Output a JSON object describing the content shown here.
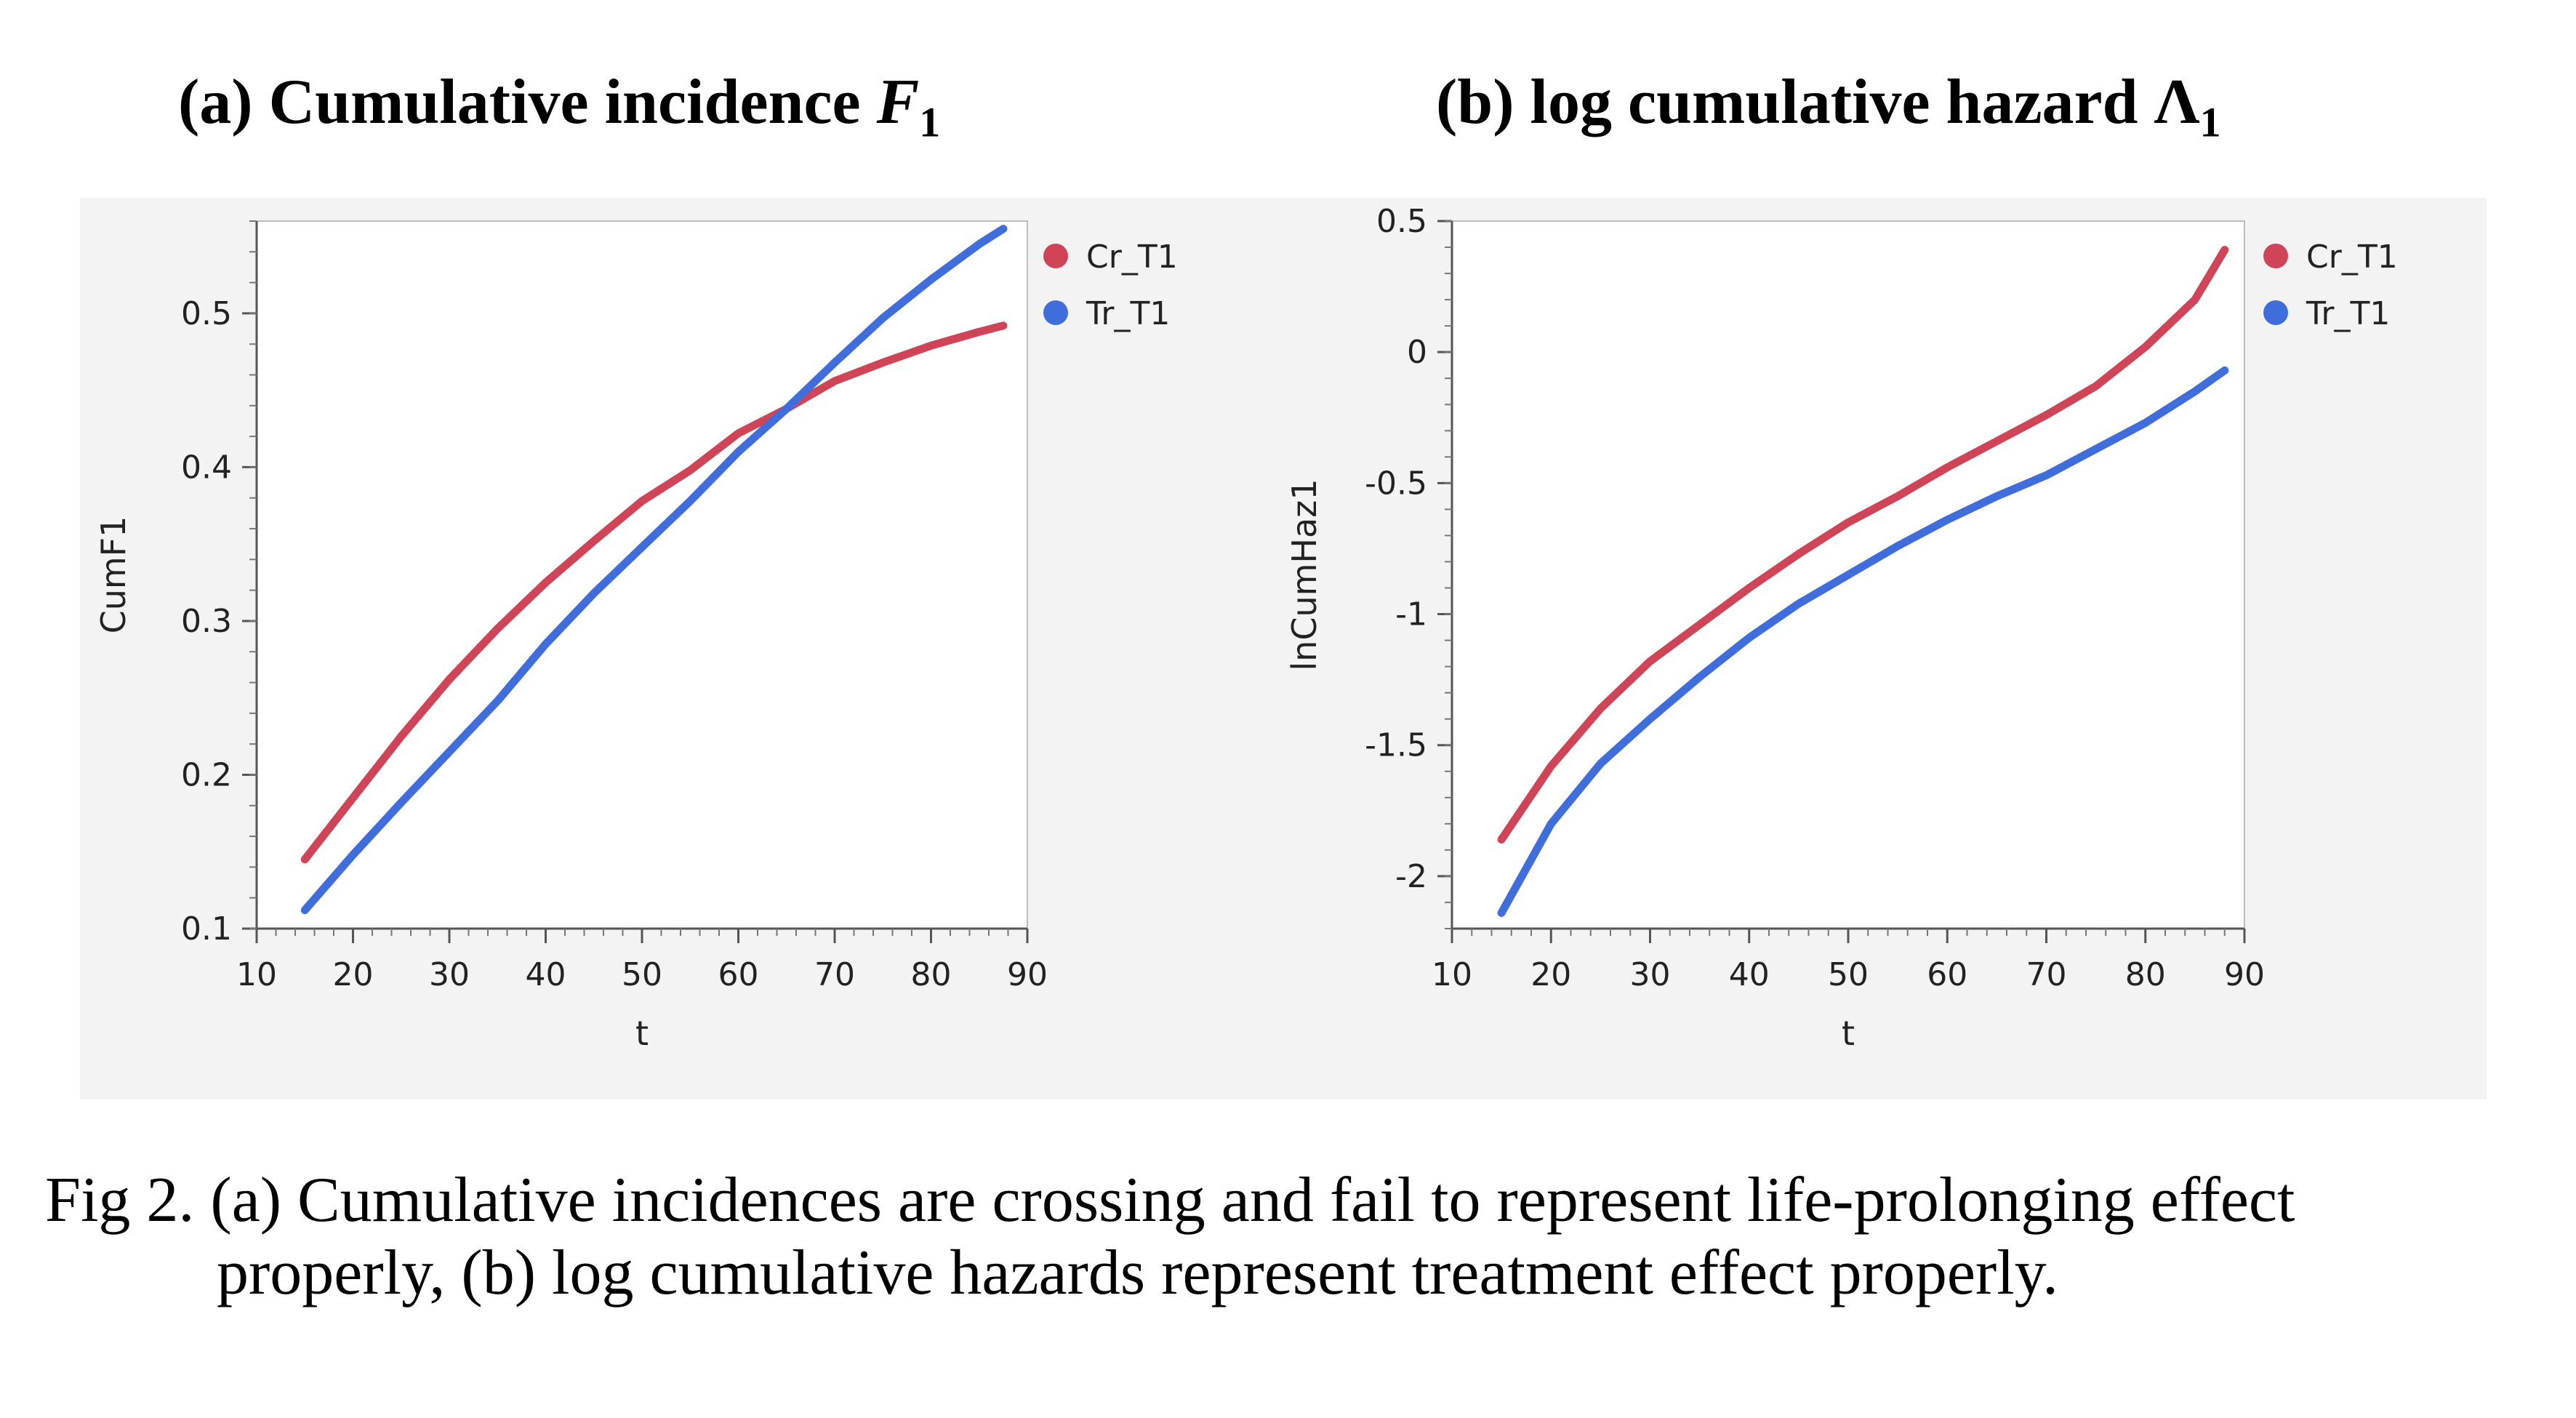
{
  "panels": [
    {
      "label": "(a) Cumulative incidence ",
      "symbol": "F",
      "subscript": "1"
    },
    {
      "label": "(b) log cumulative hazard  ",
      "symbol": "Λ",
      "subscript": "1"
    }
  ],
  "caption": {
    "line1": "Fig 2. (a) Cumulative incidences are crossing and fail to represent life-prolonging effect",
    "line2": "properly, (b) log cumulative hazards represent treatment effect properly."
  },
  "colors": {
    "Cr_T1": "#d04458",
    "Tr_T1": "#3f6ddc"
  },
  "chart_data": [
    {
      "type": "line",
      "title": "",
      "xlabel": "t",
      "ylabel": "CumF1",
      "xlim": [
        10,
        90
      ],
      "ylim": [
        0.1,
        0.56
      ],
      "xticks": [
        10,
        20,
        30,
        40,
        50,
        60,
        70,
        80,
        90
      ],
      "yticks": [
        0.1,
        0.2,
        0.3,
        0.4,
        0.5
      ],
      "ytick_labels": [
        "0.1",
        "0.2",
        "0.3",
        "0.4",
        "0.5"
      ],
      "legend": "right",
      "grid": false,
      "series": [
        {
          "name": "Cr_T1",
          "color": "#d04458",
          "x": [
            15,
            20,
            25,
            30,
            35,
            40,
            45,
            50,
            55,
            60,
            65,
            70,
            75,
            80,
            85,
            87.5
          ],
          "y": [
            0.145,
            0.185,
            0.225,
            0.262,
            0.295,
            0.325,
            0.352,
            0.378,
            0.398,
            0.422,
            0.438,
            0.456,
            0.468,
            0.479,
            0.488,
            0.492
          ]
        },
        {
          "name": "Tr_T1",
          "color": "#3f6ddc",
          "x": [
            15,
            20,
            25,
            30,
            35,
            40,
            45,
            50,
            55,
            60,
            65,
            70,
            75,
            80,
            85,
            87.5
          ],
          "y": [
            0.112,
            0.148,
            0.182,
            0.215,
            0.248,
            0.285,
            0.318,
            0.348,
            0.378,
            0.41,
            0.438,
            0.468,
            0.497,
            0.522,
            0.545,
            0.555
          ]
        }
      ]
    },
    {
      "type": "line",
      "title": "",
      "xlabel": "t",
      "ylabel": "lnCumHaz1",
      "xlim": [
        10,
        90
      ],
      "ylim": [
        -2.2,
        0.5
      ],
      "xticks": [
        10,
        20,
        30,
        40,
        50,
        60,
        70,
        80,
        90
      ],
      "yticks": [
        -2,
        -1.5,
        -1,
        -0.5,
        0,
        0.5
      ],
      "ytick_labels": [
        "-2",
        "-1.5",
        "-1",
        "-0.5",
        "0",
        "0.5"
      ],
      "legend": "right",
      "grid": false,
      "series": [
        {
          "name": "Cr_T1",
          "color": "#d04458",
          "x": [
            15,
            20,
            25,
            30,
            35,
            40,
            45,
            50,
            55,
            60,
            65,
            70,
            75,
            80,
            85,
            88
          ],
          "y": [
            -1.86,
            -1.58,
            -1.36,
            -1.18,
            -1.04,
            -0.9,
            -0.77,
            -0.65,
            -0.55,
            -0.44,
            -0.34,
            -0.24,
            -0.13,
            0.02,
            0.2,
            0.39
          ]
        },
        {
          "name": "Tr_T1",
          "color": "#3f6ddc",
          "x": [
            15,
            20,
            25,
            30,
            35,
            40,
            45,
            50,
            55,
            60,
            65,
            70,
            75,
            80,
            85,
            88
          ],
          "y": [
            -2.14,
            -1.8,
            -1.57,
            -1.4,
            -1.24,
            -1.09,
            -0.96,
            -0.85,
            -0.74,
            -0.64,
            -0.55,
            -0.47,
            -0.37,
            -0.27,
            -0.15,
            -0.07
          ]
        }
      ]
    }
  ]
}
